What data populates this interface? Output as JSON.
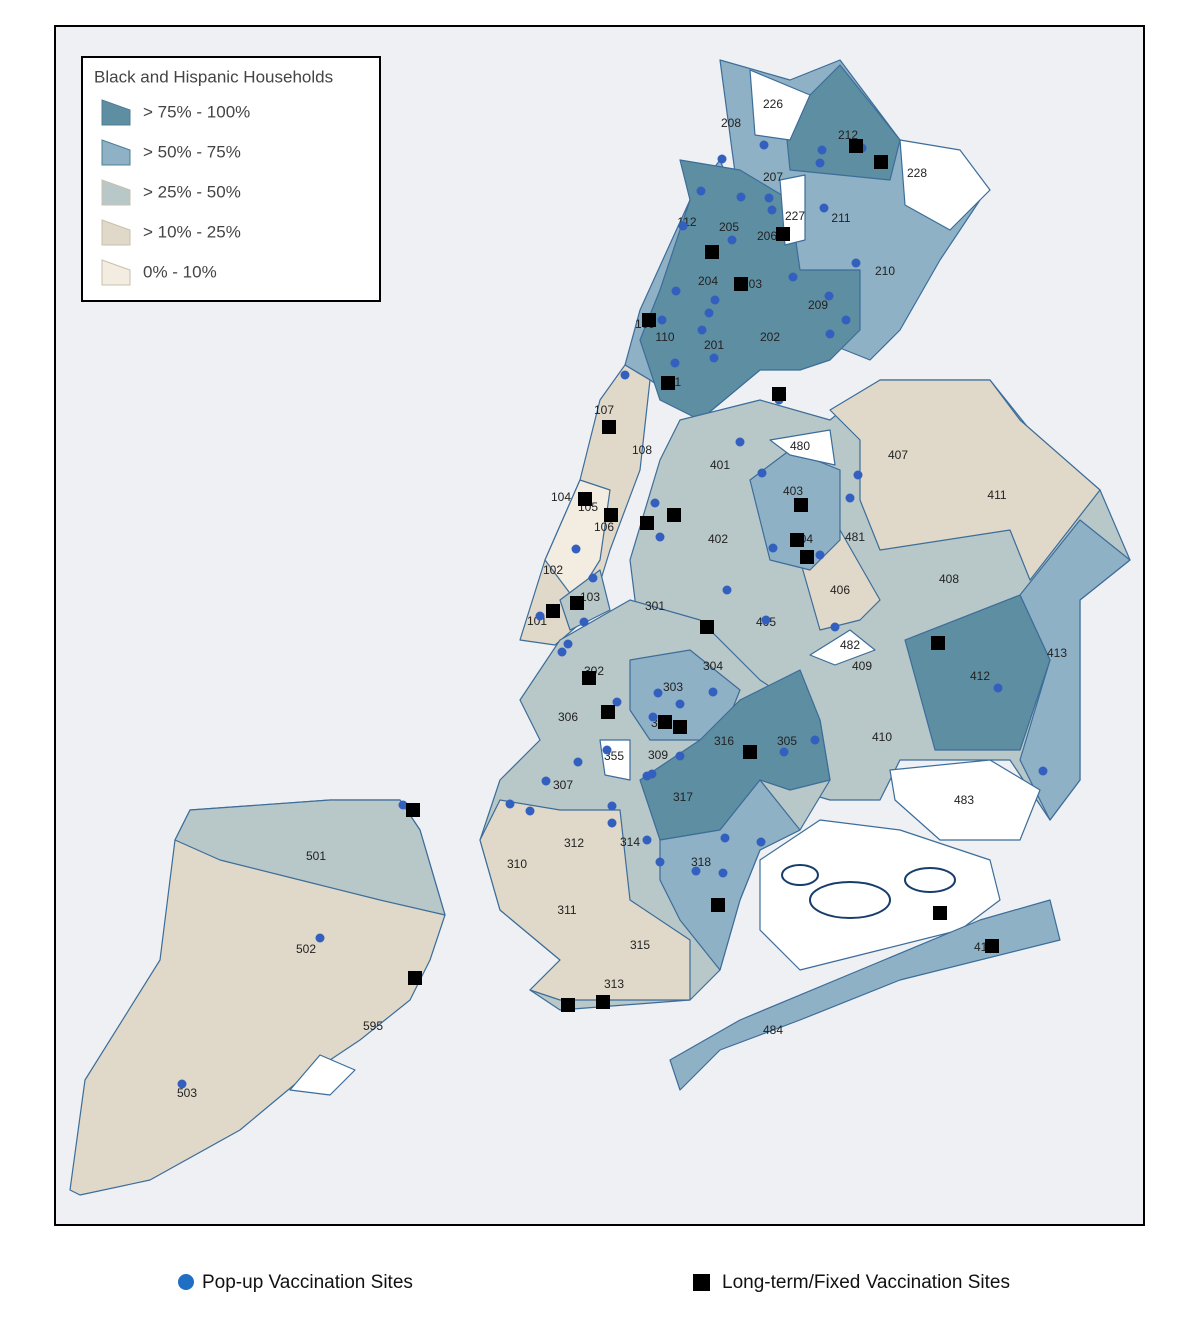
{
  "map": {
    "legend": {
      "title": "Black and Hispanic Households",
      "items": [
        {
          "label": "> 75% - 100%",
          "color": "#5e8ea1"
        },
        {
          "label": "> 50% - 75%",
          "color": "#8fb1c6"
        },
        {
          "label": "> 25% - 50%",
          "color": "#b8c7c7"
        },
        {
          "label": "> 10% - 25%",
          "color": "#e0d9c9"
        },
        {
          "label": "0% - 10%",
          "color": "#f3ece0"
        }
      ]
    },
    "district_labels": [
      "208",
      "226",
      "212",
      "228",
      "207",
      "227",
      "211",
      "112",
      "205",
      "206",
      "210",
      "204",
      "203",
      "209",
      "109",
      "110",
      "201",
      "202",
      "111",
      "107",
      "108",
      "480",
      "407",
      "401",
      "403",
      "411",
      "104",
      "105",
      "106",
      "402",
      "404",
      "481",
      "102",
      "408",
      "406",
      "103",
      "301",
      "405",
      "101",
      "482",
      "413",
      "302",
      "304",
      "409",
      "412",
      "303",
      "306",
      "308",
      "316",
      "305",
      "410",
      "355",
      "309",
      "307",
      "483",
      "317",
      "312",
      "314",
      "501",
      "310",
      "318",
      "311",
      "315",
      "502",
      "414",
      "313",
      "595",
      "484",
      "503"
    ],
    "site_legend": {
      "popup": "Pop-up Vaccination Sites",
      "fixed": "Long-term/Fixed Vaccination Sites"
    }
  }
}
